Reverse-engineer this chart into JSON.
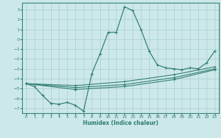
{
  "xlabel": "Humidex (Indice chaleur)",
  "xlim": [
    -0.5,
    23.5
  ],
  "ylim": [
    -7.5,
    3.7
  ],
  "xticks": [
    0,
    1,
    2,
    3,
    4,
    5,
    6,
    7,
    8,
    9,
    10,
    11,
    12,
    13,
    14,
    15,
    16,
    17,
    18,
    19,
    20,
    21,
    22,
    23
  ],
  "yticks": [
    3,
    2,
    1,
    0,
    -1,
    -2,
    -3,
    -4,
    -5,
    -6,
    -7
  ],
  "bg_color": "#cce8e8",
  "grid_color": "#aacccc",
  "line_color": "#2e7d6e",
  "main_line": {
    "x": [
      0,
      1,
      2,
      3,
      4,
      5,
      6,
      7,
      8,
      9,
      10,
      11,
      12,
      13,
      14,
      15,
      16,
      17,
      18,
      19,
      20,
      21,
      22,
      23
    ],
    "y": [
      -4.5,
      -4.8,
      -5.7,
      -6.5,
      -6.6,
      -6.4,
      -6.7,
      -7.3,
      -3.5,
      -1.5,
      0.7,
      0.7,
      3.3,
      2.9,
      1.0,
      -1.2,
      -2.6,
      -2.9,
      -3.0,
      -3.1,
      -2.9,
      -3.0,
      -2.4,
      -1.2
    ]
  },
  "trend_lines": [
    {
      "x": [
        0,
        6,
        12,
        18,
        23
      ],
      "y": [
        -4.5,
        -4.7,
        -4.3,
        -3.6,
        -2.8
      ]
    },
    {
      "x": [
        0,
        6,
        12,
        18,
        23
      ],
      "y": [
        -4.5,
        -4.9,
        -4.6,
        -3.9,
        -3.0
      ]
    },
    {
      "x": [
        0,
        6,
        12,
        18,
        23
      ],
      "y": [
        -4.5,
        -5.1,
        -4.8,
        -4.1,
        -3.1
      ]
    }
  ]
}
